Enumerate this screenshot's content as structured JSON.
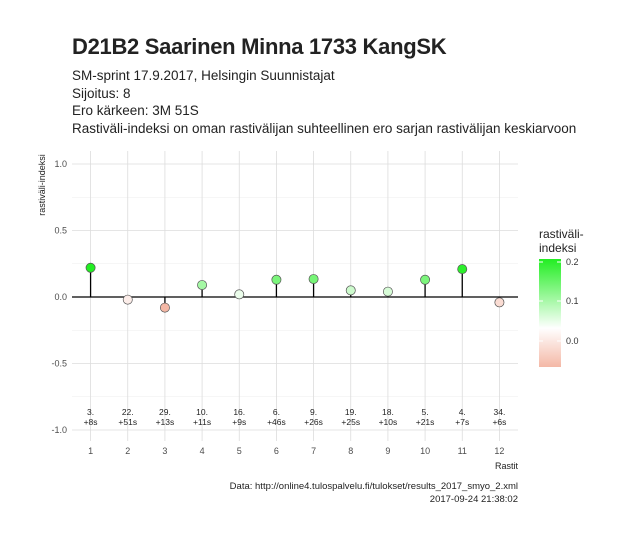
{
  "header": {
    "title": "D21B2 Saarinen Minna 1733 KangSK",
    "subtitle_lines": [
      "SM-sprint 17.9.2017, Helsingin Suunnistajat",
      "Sijoitus: 8",
      "Ero kärkeen: 3M 51S",
      "Rastiväli-indeksi on oman rastivälijan suhteellinen ero sarjan rastivälijan keskiarvoon"
    ]
  },
  "caption": {
    "line1": "Data: http://online4.tulospalvelu.fi/tulokset/results_2017_smyo_2.xml",
    "line2": "2017-09-24 21:38:02"
  },
  "chart_data": {
    "type": "scatter",
    "style": "lollipop",
    "xlabel": "Rastit",
    "ylabel": "rastiväli-indeksi",
    "ylim": [
      -1.0,
      1.0
    ],
    "y_ticks": [
      "-1.0",
      "-0.5",
      "0.0",
      "0.5",
      "1.0"
    ],
    "x": [
      1,
      2,
      3,
      4,
      5,
      6,
      7,
      8,
      9,
      10,
      11,
      12
    ],
    "values": [
      0.22,
      -0.02,
      -0.08,
      0.09,
      0.02,
      0.13,
      0.135,
      0.05,
      0.04,
      0.13,
      0.21,
      -0.04
    ],
    "rank_labels": [
      "3.",
      "22.",
      "29.",
      "10.",
      "16.",
      "6.",
      "9.",
      "19.",
      "18.",
      "5.",
      "4.",
      "34."
    ],
    "diff_labels": [
      "+8s",
      "+51s",
      "+13s",
      "+11s",
      "+9s",
      "+46s",
      "+26s",
      "+25s",
      "+10s",
      "+21s",
      "+7s",
      "+6s"
    ],
    "grid": true,
    "legend": {
      "title_lines": [
        "rastiväli-",
        "indeksi"
      ],
      "ticks": [
        "0.2",
        "0.1",
        "0.0"
      ],
      "placement": "right",
      "colors": {
        "low": "#f4b8a6",
        "mid": "#ffffff",
        "high": "#22ee22"
      }
    }
  }
}
